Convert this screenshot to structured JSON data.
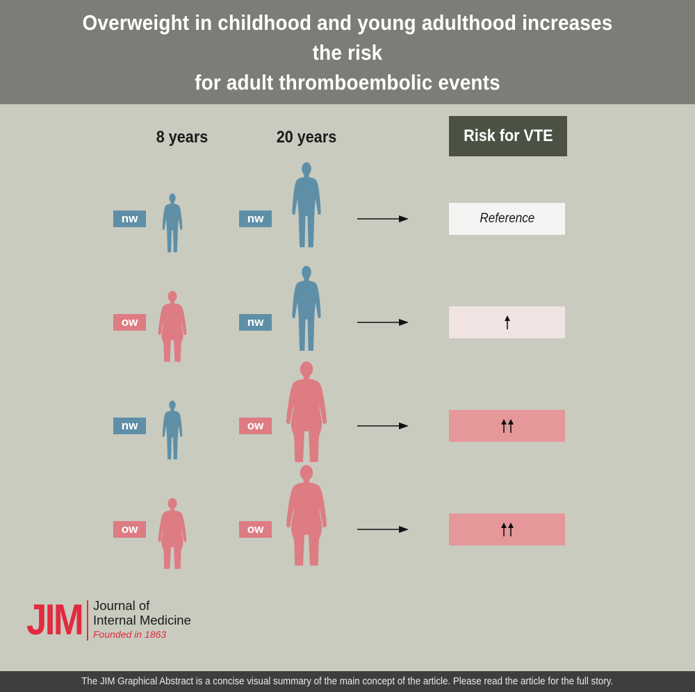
{
  "header": {
    "title_line1": "Overweight in childhood and young adulthood increases the risk",
    "title_line2": "for adult thromboembolic events"
  },
  "columns": {
    "age1": "8 years",
    "age2": "20 years",
    "risk": "Risk for VTE"
  },
  "rows": [
    {
      "child": "nw",
      "young_adult": "nw",
      "risk_label": "Reference",
      "risk_arrows": 0
    },
    {
      "child": "ow",
      "young_adult": "nw",
      "risk_label": "",
      "risk_arrows": 1
    },
    {
      "child": "nw",
      "young_adult": "ow",
      "risk_label": "",
      "risk_arrows": 2
    },
    {
      "child": "ow",
      "young_adult": "ow",
      "risk_label": "",
      "risk_arrows": 2
    }
  ],
  "colors": {
    "nw": "#5e8fa7",
    "ow": "#dd7c83",
    "risk_reference": "#f4f4f2",
    "risk_low": "#f1e3e2",
    "risk_high": "#e6979a",
    "accent": "#e32a3e"
  },
  "logo": {
    "mark": "JIM",
    "line1": "Journal of",
    "line2": "Internal Medicine",
    "founded": "Founded in 1863"
  },
  "footer": {
    "text": "The JIM Graphical Abstract is a concise visual summary of the main concept of the article. Please read the article for the full story."
  }
}
